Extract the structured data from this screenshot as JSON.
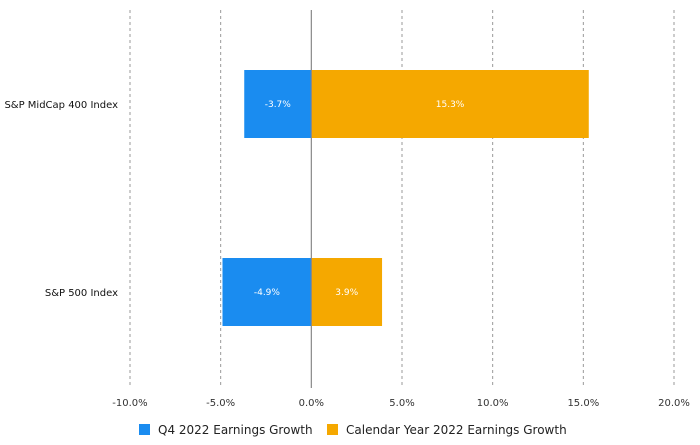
{
  "chart_data": {
    "type": "bar",
    "orientation": "horizontal",
    "categories": [
      "S&P MidCap 400 Index",
      "S&P 500 Index"
    ],
    "series": [
      {
        "name": "Q4 2022 Earnings Growth",
        "values": [
          -3.7,
          -4.9
        ],
        "labels": [
          "-3.7%",
          "-4.9%"
        ],
        "color": "#1a8cf0"
      },
      {
        "name": "Calendar Year 2022 Earnings Growth",
        "values": [
          15.3,
          3.9
        ],
        "labels": [
          "15.3%",
          "3.9%"
        ],
        "color": "#f5a800"
      }
    ],
    "xlim": [
      -10,
      20
    ],
    "xticks": [
      -10,
      -5,
      0,
      5,
      10,
      15,
      20
    ],
    "xtick_labels": [
      "-10.0%",
      "-5.0%",
      "0.0%",
      "5.0%",
      "10.0%",
      "15.0%",
      "20.0%"
    ],
    "grid": "vertical dashed",
    "legend_position": "bottom",
    "title": "",
    "xlabel": "",
    "ylabel": ""
  }
}
